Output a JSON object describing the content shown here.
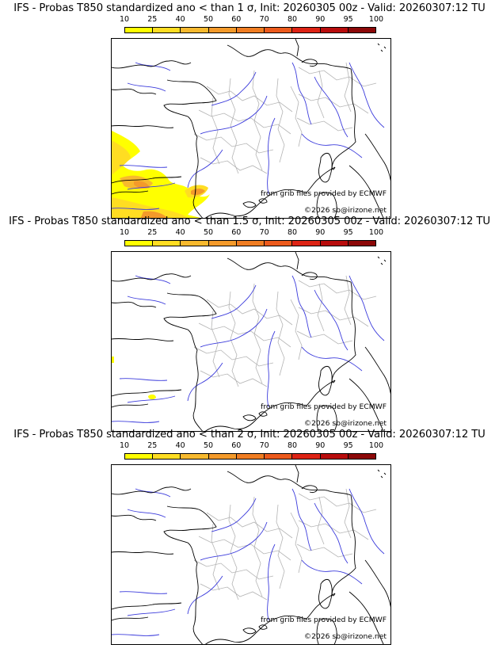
{
  "colorbar": {
    "ticks": [
      "10",
      "25",
      "40",
      "50",
      "60",
      "70",
      "80",
      "90",
      "95",
      "100"
    ],
    "colors": [
      "#ffff00",
      "#ffdd22",
      "#f7b92e",
      "#f49a2a",
      "#f07d22",
      "#ec5a1c",
      "#dd2314",
      "#b80c0c",
      "#8c0808",
      "#5a0404"
    ]
  },
  "credits": {
    "source": "from grib files provided by ECMWF",
    "copyright": "©2026 sb@irizone.net"
  },
  "panels": [
    {
      "title": "IFS - Probas T850  standardized ano < than 1 σ, Init: 20260305 00z - Valid: 20260307:12 TU",
      "threshold_sigma": 1
    },
    {
      "title": "IFS - Probas T850  standardized ano < than 1.5 σ, Init: 20260305 00z - Valid: 20260307:12 TU",
      "threshold_sigma": 1.5
    },
    {
      "title": "IFS - Probas T850  standardized ano < than 2 σ, Init: 20260305 00z - Valid: 20260307:12 TU",
      "threshold_sigma": 2
    }
  ]
}
